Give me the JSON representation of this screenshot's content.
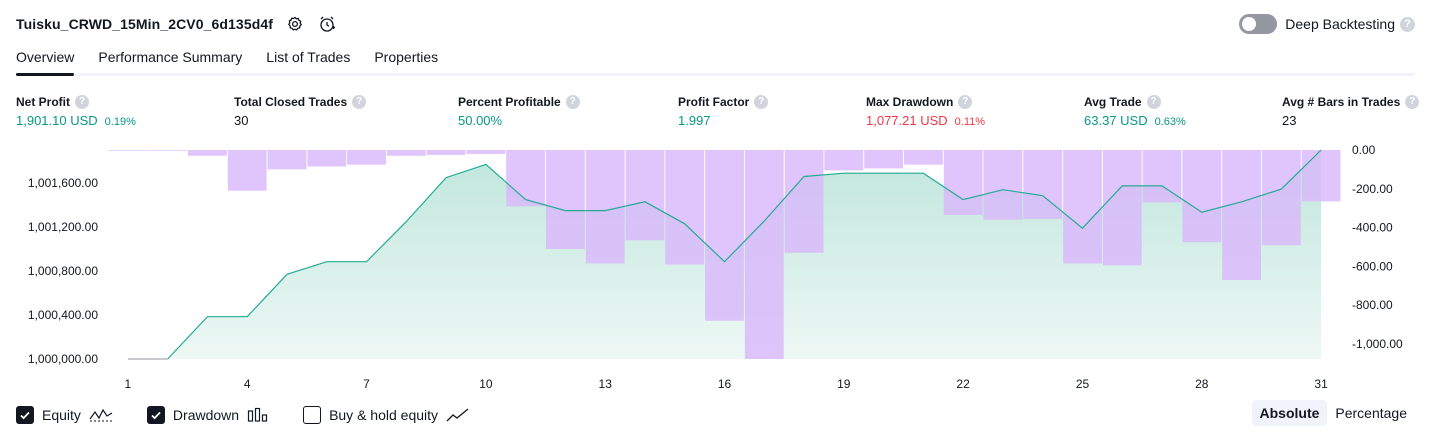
{
  "header": {
    "strategy_title": "Tuisku_CRWD_15Min_2CV0_6d135d4f",
    "deep_backtesting_label": "Deep Backtesting",
    "help_glyph": "?"
  },
  "tabs": [
    {
      "label": "Overview",
      "active": true
    },
    {
      "label": "Performance Summary",
      "active": false
    },
    {
      "label": "List of Trades",
      "active": false
    },
    {
      "label": "Properties",
      "active": false
    }
  ],
  "metrics": {
    "net_profit": {
      "label": "Net Profit",
      "value": "1,901.10 USD",
      "pct": "0.19%"
    },
    "total_closed_trades": {
      "label": "Total Closed Trades",
      "value": "30"
    },
    "percent_profitable": {
      "label": "Percent Profitable",
      "value": "50.00%"
    },
    "profit_factor": {
      "label": "Profit Factor",
      "value": "1.997"
    },
    "max_drawdown": {
      "label": "Max Drawdown",
      "value": "1,077.21 USD",
      "pct": "0.11%"
    },
    "avg_trade": {
      "label": "Avg Trade",
      "value": "63.37 USD",
      "pct": "0.63%"
    },
    "avg_bars": {
      "label": "Avg # Bars in Trades",
      "value": "23"
    }
  },
  "colors": {
    "profit": "#089981",
    "loss": "#f23645",
    "equity_line": "#22ab94",
    "drawdown_fill": "#d9b8fb",
    "equity_fill_top": "#bfe6dc",
    "equity_fill_bottom": "#eef8f5",
    "flat_line": "#a3a6af"
  },
  "chart_data": {
    "type": "area",
    "x": [
      1,
      2,
      3,
      4,
      5,
      6,
      7,
      8,
      9,
      10,
      11,
      12,
      13,
      14,
      15,
      16,
      17,
      18,
      19,
      20,
      21,
      22,
      23,
      24,
      25,
      26,
      27,
      28,
      29,
      30,
      31
    ],
    "x_ticks": [
      "1",
      "4",
      "7",
      "10",
      "13",
      "16",
      "19",
      "22",
      "25",
      "28",
      "31"
    ],
    "left_axis": {
      "ticks": [
        "1,000,000.00",
        "1,000,400.00",
        "1,000,800.00",
        "1,001,200.00",
        "1,001,600.00"
      ],
      "ylim": [
        1000000,
        1001901.1
      ]
    },
    "right_axis": {
      "ticks": [
        "0.00",
        "-200.00",
        "-400.00",
        "-600.00",
        "-800.00",
        "-1,000.00"
      ],
      "ylim": [
        -1077.21,
        0
      ]
    },
    "series": [
      {
        "name": "Equity",
        "values": [
          1000000,
          1000000,
          1000385,
          1000385,
          1000770,
          1000885,
          1000885,
          1001250,
          1001650,
          1001770,
          1001450,
          1001350,
          1001350,
          1001430,
          1001230,
          1000885,
          1001255,
          1001660,
          1001690,
          1001690,
          1001690,
          1001450,
          1001540,
          1001485,
          1001190,
          1001575,
          1001575,
          1001335,
          1001430,
          1001545,
          1001901.1
        ]
      },
      {
        "name": "Drawdown",
        "values": [
          0,
          0,
          -30,
          -210,
          -100,
          -85,
          -75,
          -30,
          -25,
          -20,
          -290,
          -510,
          -585,
          -465,
          -590,
          -880,
          -1077.21,
          -530,
          -105,
          -95,
          -75,
          -335,
          -360,
          -355,
          -585,
          -595,
          -270,
          -475,
          -670,
          -490,
          -265
        ]
      }
    ],
    "grid": false
  },
  "footer": {
    "equity_label": "Equity",
    "drawdown_label": "Drawdown",
    "buy_hold_label": "Buy & hold equity",
    "absolute_label": "Absolute",
    "percentage_label": "Percentage"
  }
}
